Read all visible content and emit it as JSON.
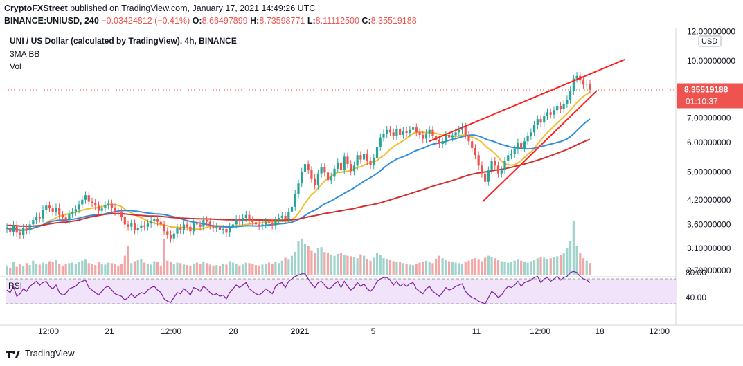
{
  "header": {
    "publisher": "CryptoFXStreet",
    "published_text": "published on TradingView.com, January 17, 2021 14:49:26 UTC",
    "symbol": "BINANCE:UNIUSD, 240",
    "change": "−0.03424812 (−0.41%)",
    "o_label": "O:",
    "o_value": "8.66497899",
    "h_label": "H:",
    "h_value": "8.73598771",
    "l_label": "L:",
    "l_value": "8.11112500",
    "c_label": "C:",
    "c_value": "8.35519188"
  },
  "legend": {
    "title": "UNI / US Dollar (calculated by TradingView), 4h, BINANCE",
    "indicator1": "3MA BB",
    "indicator2": "Vol",
    "rsi": "RSI"
  },
  "footer": {
    "brand": "TradingView"
  },
  "colors": {
    "up": "#26a69a",
    "down": "#ef5350",
    "vol_up": "#9fd3cc",
    "vol_down": "#f3a6a5",
    "ma_fast": "#f4bd2f",
    "ma_mid": "#2f8fdc",
    "ma_slow": "#d32f2f",
    "wedge": "#ff1f1f",
    "rsi": "#7b1fa2",
    "rsi_band": "#f0e3fa"
  },
  "chart_data": {
    "type": "candlestick",
    "symbol": "UNIUSD",
    "timeframe": "4h",
    "price_axis": {
      "unit": "USD",
      "ticks": [
        "12.00000000",
        "10.00000000",
        "8.35519188",
        "7.00000000",
        "6.00000000",
        "5.00000000",
        "4.20000000",
        "3.60000000",
        "3.10000000",
        "2.70000000"
      ],
      "tick_values": [
        12.0,
        10.0,
        8.35519188,
        7.0,
        6.0,
        5.0,
        4.2,
        3.6,
        3.1,
        2.7
      ],
      "scale": "log",
      "range": [
        2.62,
        12.3
      ],
      "last_price": 8.35519188,
      "last_price_label": "8.35519188",
      "countdown": "01:10:37"
    },
    "time_axis": {
      "labels": [
        "12:00",
        "21",
        "12:00",
        "28",
        "2021",
        "5",
        "11",
        "12:00",
        "18",
        "12:00"
      ]
    },
    "rsi": {
      "ticks": [
        "80.00",
        "40.00"
      ],
      "tick_values": [
        80,
        40
      ],
      "band": [
        30,
        70
      ]
    },
    "trendlines": [
      {
        "name": "wedge upper",
        "from": 6.05,
        "to": 10.1
      },
      {
        "name": "wedge lower",
        "from": 4.15,
        "to": 8.3
      }
    ],
    "close": [
      3.53,
      3.44,
      3.58,
      3.42,
      3.38,
      3.52,
      3.48,
      3.6,
      3.7,
      3.78,
      3.74,
      3.95,
      4.05,
      3.98,
      3.9,
      4.0,
      3.82,
      3.76,
      3.7,
      3.85,
      3.9,
      3.96,
      4.08,
      4.2,
      4.32,
      4.15,
      4.12,
      4.05,
      3.92,
      3.98,
      4.06,
      4.1,
      4.0,
      3.9,
      3.88,
      3.78,
      3.6,
      3.55,
      3.62,
      3.48,
      3.52,
      3.58,
      3.55,
      3.62,
      3.68,
      3.72,
      3.66,
      3.6,
      3.45,
      3.38,
      3.3,
      3.4,
      3.52,
      3.48,
      3.6,
      3.55,
      3.45,
      3.62,
      3.6,
      3.55,
      3.7,
      3.66,
      3.58,
      3.52,
      3.55,
      3.48,
      3.5,
      3.42,
      3.55,
      3.6,
      3.72,
      3.68,
      3.75,
      3.82,
      3.7,
      3.65,
      3.6,
      3.56,
      3.6,
      3.66,
      3.62,
      3.58,
      3.7,
      3.75,
      3.8,
      3.72,
      3.9,
      4.02,
      4.35,
      4.65,
      5.0,
      5.25,
      5.05,
      4.8,
      4.6,
      4.95,
      5.15,
      4.98,
      4.75,
      4.85,
      5.1,
      5.3,
      5.05,
      5.5,
      5.25,
      5.02,
      5.2,
      5.55,
      5.4,
      5.6,
      5.35,
      5.22,
      5.45,
      5.85,
      6.2,
      6.35,
      6.5,
      6.4,
      6.25,
      6.55,
      6.3,
      6.45,
      6.38,
      6.5,
      6.6,
      6.4,
      6.3,
      6.15,
      6.35,
      6.5,
      6.25,
      6.1,
      5.95,
      6.05,
      6.3,
      6.2,
      6.28,
      6.4,
      6.5,
      6.62,
      6.3,
      6.05,
      5.8,
      5.55,
      5.2,
      4.95,
      4.7,
      5.05,
      5.35,
      5.2,
      4.95,
      5.05,
      5.35,
      5.55,
      5.6,
      5.75,
      6.0,
      5.8,
      6.05,
      6.25,
      6.4,
      6.7,
      6.95,
      6.8,
      7.1,
      7.25,
      7.15,
      7.35,
      7.55,
      7.4,
      7.65,
      7.85,
      8.3,
      8.95,
      9.1,
      8.85,
      8.62,
      8.66,
      8.35519188
    ],
    "volume": [
      40,
      30,
      55,
      35,
      45,
      38,
      50,
      42,
      60,
      48,
      44,
      52,
      46,
      58,
      55,
      62,
      48,
      40,
      45,
      50,
      52,
      48,
      56,
      60,
      64,
      50,
      46,
      42,
      55,
      48,
      44,
      52,
      50,
      45,
      40,
      48,
      80,
      120,
      50,
      58,
      62,
      66,
      52,
      48,
      44,
      58,
      55,
      40,
      150,
      60,
      55,
      48,
      52,
      50,
      44,
      42,
      40,
      48,
      52,
      46,
      56,
      50,
      44,
      40,
      42,
      38,
      46,
      44,
      58,
      52,
      48,
      40,
      44,
      52,
      50,
      46,
      42,
      40,
      44,
      48,
      52,
      46,
      56,
      50,
      60,
      72,
      64,
      80,
      96,
      140,
      150,
      130,
      120,
      100,
      90,
      110,
      115,
      95,
      90,
      85,
      80,
      88,
      92,
      84,
      80,
      78,
      74,
      70,
      86,
      80,
      66,
      60,
      72,
      90,
      84,
      70,
      66,
      62,
      58,
      54,
      56,
      50,
      46,
      44,
      42,
      48,
      52,
      56,
      60,
      54,
      50,
      66,
      80,
      70,
      62,
      58,
      54,
      52,
      50,
      48,
      56,
      60,
      66,
      70,
      64,
      58,
      72,
      80,
      76,
      70,
      62,
      58,
      54,
      52,
      56,
      60,
      64,
      60,
      56,
      52,
      58,
      62,
      70,
      76,
      72,
      66,
      70,
      74,
      78,
      82,
      90,
      110,
      140,
      220,
      120,
      90,
      70,
      60,
      50
    ],
    "rsi_values": [
      52,
      48,
      58,
      42,
      46,
      54,
      50,
      58,
      62,
      66,
      60,
      64,
      66,
      58,
      54,
      60,
      48,
      44,
      46,
      54,
      56,
      58,
      64,
      66,
      68,
      56,
      52,
      48,
      44,
      50,
      56,
      58,
      52,
      46,
      44,
      42,
      36,
      40,
      46,
      40,
      44,
      48,
      46,
      52,
      56,
      58,
      52,
      48,
      38,
      34,
      32,
      40,
      48,
      46,
      54,
      50,
      44,
      56,
      54,
      50,
      58,
      54,
      48,
      44,
      46,
      42,
      44,
      38,
      48,
      54,
      60,
      56,
      60,
      64,
      54,
      50,
      46,
      44,
      48,
      54,
      50,
      46,
      58,
      62,
      64,
      56,
      66,
      70,
      74,
      76,
      78,
      78,
      70,
      62,
      56,
      64,
      66,
      60,
      54,
      56,
      62,
      66,
      56,
      66,
      58,
      52,
      56,
      64,
      58,
      62,
      54,
      50,
      56,
      66,
      70,
      72,
      72,
      68,
      60,
      66,
      58,
      62,
      58,
      62,
      64,
      54,
      50,
      46,
      54,
      58,
      50,
      46,
      42,
      48,
      56,
      52,
      54,
      58,
      60,
      62,
      50,
      44,
      40,
      38,
      34,
      32,
      30,
      40,
      50,
      46,
      40,
      44,
      52,
      58,
      56,
      60,
      66,
      58,
      64,
      66,
      68,
      72,
      74,
      64,
      70,
      72,
      66,
      70,
      74,
      68,
      72,
      74,
      80,
      82,
      80,
      74,
      70,
      68,
      64
    ]
  }
}
